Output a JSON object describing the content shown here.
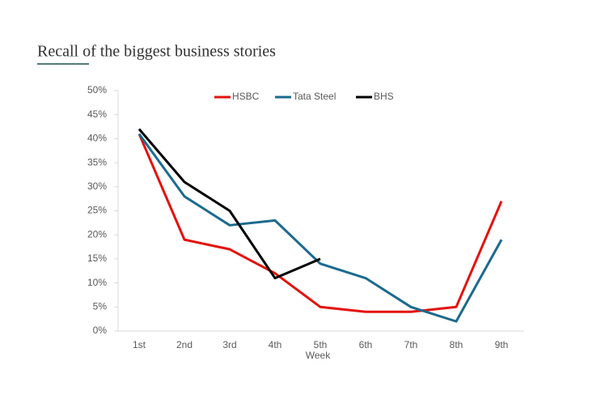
{
  "chart_data": {
    "type": "line",
    "title": "Recall of the biggest business stories",
    "x_label": "Week",
    "categories": [
      "1st",
      "2nd",
      "3rd",
      "4th",
      "5th",
      "6th",
      "7th",
      "8th",
      "9th"
    ],
    "series": [
      {
        "name": "HSBC",
        "color": "#e3120b",
        "values": [
          41,
          19,
          17,
          12,
          5,
          4,
          4,
          5,
          27
        ]
      },
      {
        "name": "Tata Steel",
        "color": "#1b6a8f",
        "values": [
          41,
          28,
          22,
          23,
          14,
          11,
          5,
          2,
          19
        ]
      },
      {
        "name": "BHS",
        "color": "#000000",
        "values": [
          42,
          31,
          25,
          11,
          15,
          null,
          null,
          null,
          null
        ]
      }
    ],
    "ylim": [
      0,
      50
    ],
    "yticks": [
      {
        "value": 0,
        "label": "0%"
      },
      {
        "value": 5,
        "label": "5%"
      },
      {
        "value": 10,
        "label": "10%"
      },
      {
        "value": 15,
        "label": "15%"
      },
      {
        "value": 20,
        "label": "20%"
      },
      {
        "value": 25,
        "label": "25%"
      },
      {
        "value": 30,
        "label": "30%"
      },
      {
        "value": 35,
        "label": "35%"
      },
      {
        "value": 40,
        "label": "40%"
      },
      {
        "value": 45,
        "label": "45%"
      },
      {
        "value": 50,
        "label": "50%"
      }
    ],
    "legend": "top"
  }
}
